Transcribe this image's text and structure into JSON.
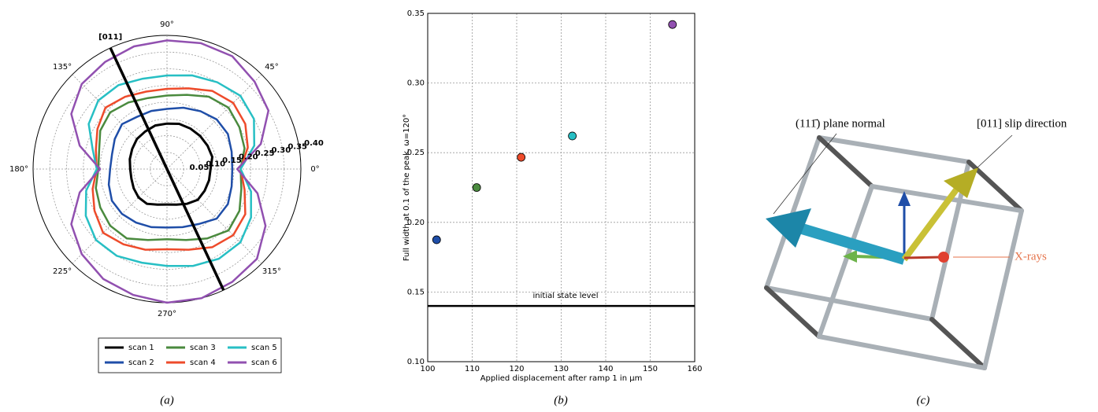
{
  "chart_data": [
    {
      "type": "polar",
      "theta": [
        0,
        15,
        30,
        45,
        60,
        75,
        90,
        105,
        120,
        135,
        150,
        165,
        180,
        195,
        210,
        225,
        240,
        255,
        270,
        285,
        300,
        315,
        330,
        345
      ],
      "series": [
        {
          "name": "scan 1",
          "color": "#000000",
          "values": [
            0.13,
            0.14,
            0.14,
            0.14,
            0.14,
            0.14,
            0.136,
            0.135,
            0.13,
            0.127,
            0.12,
            0.115,
            0.11,
            0.11,
            0.115,
            0.12,
            0.12,
            0.11,
            0.106,
            0.11,
            0.12,
            0.13,
            0.13,
            0.13
          ]
        },
        {
          "name": "scan 2",
          "color": "#1f4ea8",
          "values": [
            0.195,
            0.2,
            0.21,
            0.21,
            0.2,
            0.19,
            0.18,
            0.18,
            0.18,
            0.19,
            0.18,
            0.17,
            0.17,
            0.18,
            0.19,
            0.19,
            0.185,
            0.18,
            0.175,
            0.18,
            0.19,
            0.21,
            0.21,
            0.2
          ]
        },
        {
          "name": "scan 3",
          "color": "#4a8a3e",
          "values": [
            0.22,
            0.24,
            0.25,
            0.26,
            0.25,
            0.23,
            0.22,
            0.22,
            0.23,
            0.24,
            0.23,
            0.21,
            0.205,
            0.22,
            0.23,
            0.24,
            0.24,
            0.22,
            0.21,
            0.22,
            0.24,
            0.26,
            0.25,
            0.23
          ]
        },
        {
          "name": "scan 4",
          "color": "#ee4b2b",
          "values": [
            0.22,
            0.25,
            0.27,
            0.28,
            0.27,
            0.25,
            0.24,
            0.24,
            0.25,
            0.26,
            0.24,
            0.22,
            0.21,
            0.23,
            0.25,
            0.27,
            0.26,
            0.25,
            0.24,
            0.25,
            0.27,
            0.28,
            0.27,
            0.24
          ]
        },
        {
          "name": "scan 5",
          "color": "#27bfc4",
          "values": [
            0.22,
            0.27,
            0.3,
            0.31,
            0.3,
            0.29,
            0.28,
            0.28,
            0.29,
            0.29,
            0.27,
            0.23,
            0.21,
            0.25,
            0.28,
            0.3,
            0.3,
            0.29,
            0.29,
            0.3,
            0.31,
            0.31,
            0.29,
            0.26
          ]
        },
        {
          "name": "scan 6",
          "color": "#9150b0",
          "values": [
            0.21,
            0.29,
            0.35,
            0.37,
            0.39,
            0.39,
            0.385,
            0.38,
            0.37,
            0.36,
            0.33,
            0.27,
            0.2,
            0.27,
            0.33,
            0.36,
            0.38,
            0.39,
            0.4,
            0.4,
            0.39,
            0.38,
            0.34,
            0.28
          ]
        }
      ],
      "rlim": [
        0,
        0.4
      ],
      "rticks": [
        0.05,
        {
          "value": 0.1,
          "label": "0.10"
        },
        0.15,
        {
          "value": 0.2,
          "label": "0.20"
        },
        0.25,
        {
          "value": 0.3,
          "label": "0.30"
        },
        0.35,
        {
          "value": 0.4,
          "label": "0.40"
        }
      ],
      "thetaticks": [
        {
          "value": 0,
          "label": "0°"
        },
        {
          "value": 45,
          "label": "45°"
        },
        {
          "value": 90,
          "label": "90°"
        },
        {
          "value": 135,
          "label": "135°"
        },
        {
          "value": 180,
          "label": "180°"
        },
        {
          "value": 225,
          "label": "225°"
        },
        {
          "value": 270,
          "label": "270°"
        },
        {
          "value": 315,
          "label": "315°"
        }
      ],
      "annotation": {
        "text": "[011]",
        "angle": 115
      },
      "grid": true,
      "legend": "bottom",
      "caption": "(a)"
    },
    {
      "type": "scatter",
      "x": [
        102,
        111,
        121,
        132.5,
        155
      ],
      "values": [
        0.1875,
        0.225,
        0.2467,
        0.262,
        0.342
      ],
      "colors": [
        "#1f4ea8",
        "#4a8a3e",
        "#ee4b2b",
        "#27bfc4",
        "#9150b0"
      ],
      "xlim": [
        100,
        160
      ],
      "xticks": [
        100,
        110,
        120,
        130,
        140,
        150,
        160
      ],
      "ylim": [
        0.1,
        0.35
      ],
      "yticks": [
        {
          "value": 0.1,
          "label": "0.10"
        },
        0.15,
        {
          "value": 0.2,
          "label": "0.20"
        },
        0.25,
        {
          "value": 0.3,
          "label": "0.30"
        },
        0.35
      ],
      "xlabel": "Applied displacement after ramp 1 in μm",
      "ylabel": "Full width at 0.1 of the peak, ω=120°",
      "hline": {
        "value": 0.14,
        "label": "initial state level"
      },
      "grid": true,
      "caption": "(b)"
    }
  ],
  "diagram": {
    "labels": [
      "(111̄) plane normal",
      "[011] slip direction",
      "X-rays"
    ],
    "caption": "(c)"
  }
}
